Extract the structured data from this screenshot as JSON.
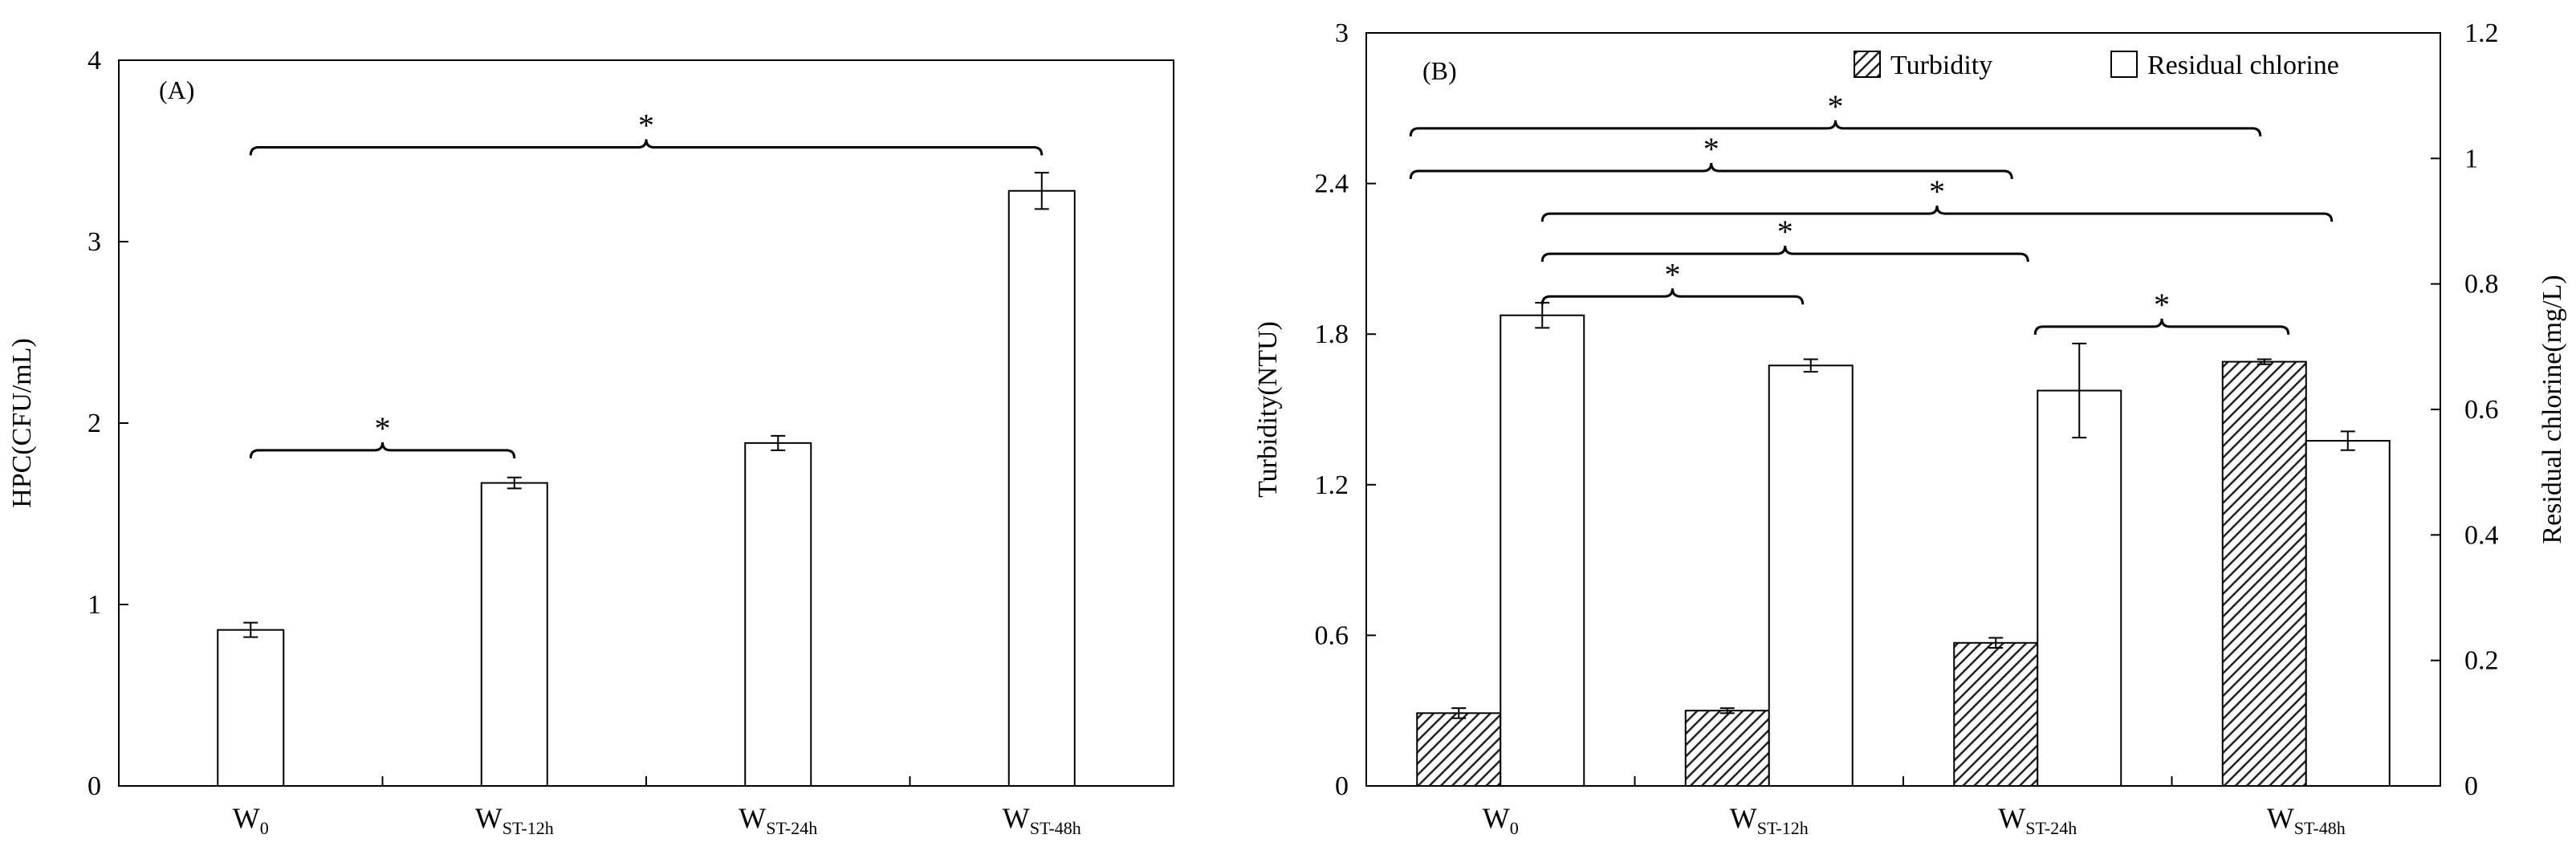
{
  "chart_data": [
    {
      "type": "bar",
      "panel_label": "(A)",
      "ylabel": "HPC(CFU/mL)",
      "ylim": [
        0,
        4
      ],
      "yticks": [
        0,
        1,
        2,
        3,
        4
      ],
      "categories": [
        {
          "main": "W",
          "sub": "0"
        },
        {
          "main": "W",
          "sub": "ST-12h"
        },
        {
          "main": "W",
          "sub": "ST-24h"
        },
        {
          "main": "W",
          "sub": "ST-48h"
        }
      ],
      "series": [
        {
          "values": [
            0.86,
            1.67,
            1.89,
            3.28
          ],
          "errors": [
            0.04,
            0.03,
            0.04,
            0.1
          ],
          "fill": "#ffffff"
        }
      ],
      "significance": [
        {
          "from": 0,
          "to": 1,
          "label": "*",
          "y": 1.85
        },
        {
          "from": 0,
          "to": 3,
          "label": "*",
          "y": 3.52
        }
      ]
    },
    {
      "type": "bar",
      "panel_label": "(B)",
      "ylabel": "Turbidity(NTU)",
      "y2label": "Residual chlorine(mg/L)",
      "ylim": [
        0,
        3
      ],
      "yticks": [
        0,
        0.6,
        1.2,
        1.8,
        2.4,
        3
      ],
      "ytick_labels": [
        "0",
        "0.6",
        "1.2",
        "1.8",
        "2.4",
        "3"
      ],
      "y2lim": [
        0,
        1.2
      ],
      "y2ticks": [
        0,
        0.2,
        0.4,
        0.6,
        0.8,
        1,
        1.2
      ],
      "y2tick_labels": [
        "0",
        "0.2",
        "0.4",
        "0.6",
        "0.8",
        "1",
        "1.2"
      ],
      "categories": [
        {
          "main": "W",
          "sub": "0"
        },
        {
          "main": "W",
          "sub": "ST-12h"
        },
        {
          "main": "W",
          "sub": "ST-24h"
        },
        {
          "main": "W",
          "sub": "ST-48h"
        }
      ],
      "legend_position": "top-right",
      "series": [
        {
          "name": "Turbidity",
          "axis": "left",
          "pattern": "hatch",
          "values": [
            0.29,
            0.3,
            0.57,
            1.69
          ],
          "errors": [
            0.02,
            0.01,
            0.02,
            0.01
          ]
        },
        {
          "name": "Residual chlorine",
          "axis": "right",
          "pattern": "white",
          "values": [
            0.75,
            0.67,
            0.63,
            0.55
          ],
          "errors": [
            0.02,
            0.01,
            0.075,
            0.015
          ]
        }
      ],
      "significance": [
        {
          "from": 0,
          "to": 1,
          "label": "*",
          "y": 1.95
        },
        {
          "from": 0,
          "to": 2,
          "label": "*",
          "y": 2.12
        },
        {
          "from": 0,
          "to": 3,
          "label": "*",
          "y": 2.28
        },
        {
          "from": -1,
          "to": 2,
          "label": "*",
          "y": 2.45
        },
        {
          "from": -1,
          "to": 3,
          "label": "*",
          "y": 2.62
        },
        {
          "from": 2.5,
          "to": 3.5,
          "label": "*",
          "y": 1.83
        }
      ]
    }
  ]
}
